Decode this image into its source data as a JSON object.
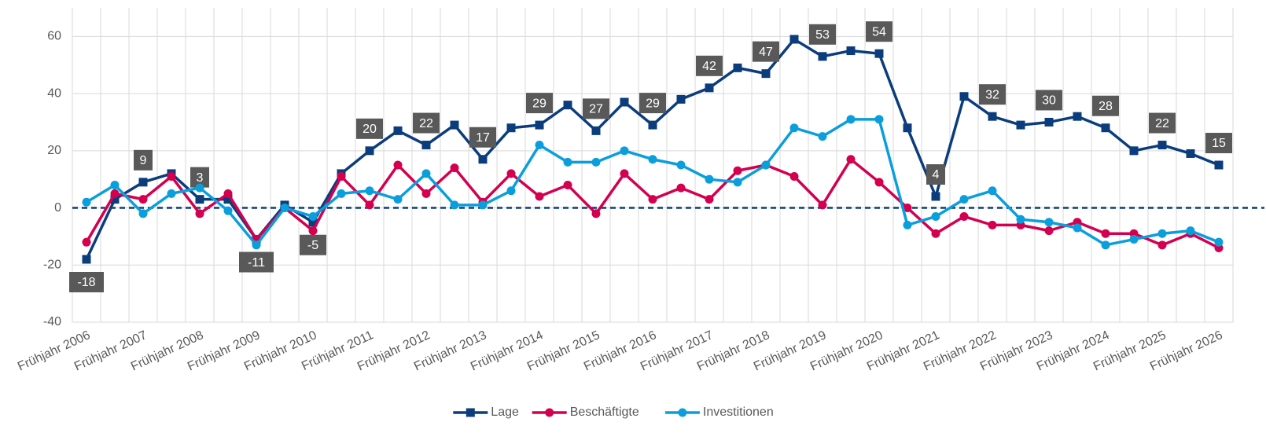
{
  "chart_data": {
    "type": "line",
    "categories": [
      "Frühjahr 2006",
      null,
      "Frühjahr 2007",
      null,
      "Frühjahr 2008",
      null,
      "Frühjahr 2009",
      null,
      "Frühjahr 2010",
      null,
      "Frühjahr 2011",
      null,
      "Frühjahr 2012",
      null,
      "Frühjahr 2013",
      null,
      "Frühjahr 2014",
      null,
      "Frühjahr 2015",
      null,
      "Frühjahr 2016",
      null,
      "Frühjahr 2017",
      null,
      "Frühjahr 2018",
      null,
      "Frühjahr 2019",
      null,
      "Frühjahr 2020",
      null,
      "Frühjahr 2021",
      null,
      "Frühjahr 2022",
      null,
      "Frühjahr 2023",
      null,
      "Frühjahr 2024",
      null,
      "Frühjahr 2025",
      null,
      "Frühjahr 2026"
    ],
    "series": [
      {
        "name": "Lage",
        "color": "#0b3d7c",
        "marker": "square",
        "values": [
          -18,
          3,
          9,
          12,
          3,
          3,
          -11,
          1,
          -5,
          12,
          20,
          27,
          22,
          29,
          17,
          28,
          29,
          36,
          27,
          37,
          29,
          38,
          42,
          49,
          47,
          59,
          53,
          55,
          54,
          28,
          4,
          39,
          32,
          29,
          30,
          32,
          28,
          20,
          22,
          19,
          15
        ],
        "value_labels": [
          "-18",
          null,
          "9",
          null,
          "3",
          null,
          "-11",
          null,
          "-5",
          null,
          "20",
          null,
          "22",
          null,
          "17",
          null,
          "29",
          null,
          "27",
          null,
          "29",
          null,
          "42",
          null,
          "47",
          null,
          "53",
          null,
          "54",
          null,
          "4",
          null,
          "32",
          null,
          "30",
          null,
          "28",
          null,
          "22",
          null,
          "15"
        ]
      },
      {
        "name": "Beschäftigte",
        "color": "#d4004f",
        "marker": "circle",
        "values": [
          -12,
          5,
          3,
          11,
          -2,
          5,
          -11,
          0,
          -8,
          11,
          1,
          15,
          5,
          14,
          2,
          12,
          4,
          8,
          -2,
          12,
          3,
          7,
          3,
          13,
          15,
          11,
          1,
          17,
          9,
          0,
          -9,
          -3,
          -6,
          -6,
          -8,
          -5,
          -9,
          -9,
          -13,
          -9,
          -14
        ]
      },
      {
        "name": "Investitionen",
        "color": "#0a9fdc",
        "marker": "circle",
        "values": [
          2,
          8,
          -2,
          5,
          7,
          -1,
          -13,
          0,
          -3,
          5,
          6,
          3,
          12,
          1,
          1,
          6,
          22,
          16,
          16,
          20,
          17,
          15,
          10,
          9,
          15,
          28,
          25,
          31,
          31,
          -6,
          -3,
          3,
          6,
          -4,
          -5,
          -7,
          -13,
          -11,
          -9,
          -8,
          -12
        ]
      }
    ],
    "ylim": [
      -40,
      70
    ],
    "yticks": [
      -40,
      -20,
      0,
      20,
      40,
      60
    ],
    "grid": true,
    "zero_line": true,
    "legend": "bottom"
  }
}
